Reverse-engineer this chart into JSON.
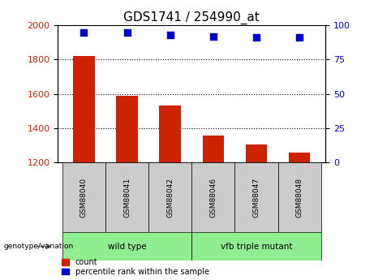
{
  "title": "GDS1741 / 254990_at",
  "samples": [
    "GSM88040",
    "GSM88041",
    "GSM88042",
    "GSM88046",
    "GSM88047",
    "GSM88048"
  ],
  "bar_values": [
    1820,
    1590,
    1530,
    1355,
    1305,
    1255
  ],
  "bar_bottom": 1200,
  "dot_values_pct": [
    95,
    95,
    93,
    92,
    91,
    91
  ],
  "ylim_left": [
    1200,
    2000
  ],
  "ylim_right": [
    0,
    100
  ],
  "yticks_left": [
    1200,
    1400,
    1600,
    1800,
    2000
  ],
  "yticks_right": [
    0,
    25,
    50,
    75,
    100
  ],
  "bar_color": "#cc2200",
  "dot_color": "#0000cc",
  "groups": [
    {
      "label": "wild type",
      "indices": [
        0,
        1,
        2
      ],
      "color": "#90ee90"
    },
    {
      "label": "vfb triple mutant",
      "indices": [
        3,
        4,
        5
      ],
      "color": "#90ee90"
    }
  ],
  "group_label": "genotype/variation",
  "legend_count_label": "count",
  "legend_pct_label": "percentile rank within the sample",
  "tick_label_color_left": "#cc2200",
  "tick_label_color_right": "#0000cc",
  "bar_width": 0.5,
  "sample_box_color": "#cccccc",
  "dot_size": 40,
  "title_fontsize": 11,
  "axis_fontsize": 8,
  "label_fontsize": 7.5
}
